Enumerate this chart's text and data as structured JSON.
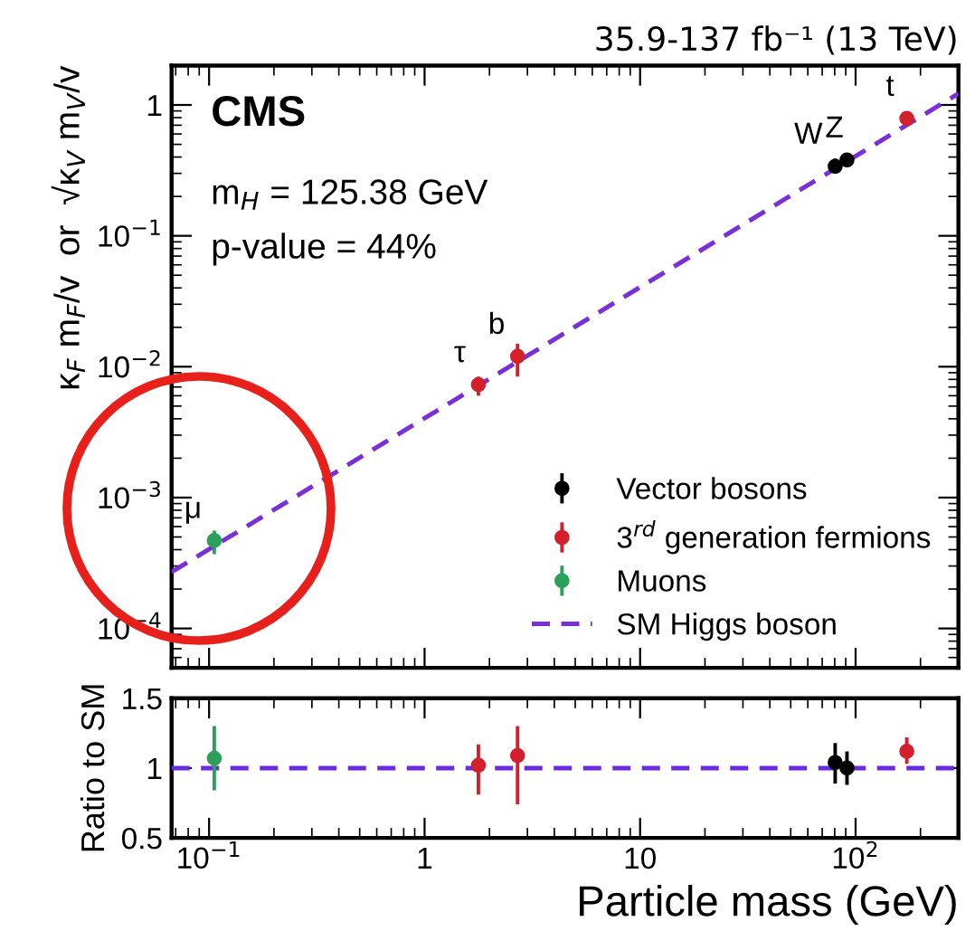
{
  "chart_data": [
    {
      "type": "scatter",
      "title": "35.9-137 fb⁻¹ (13 TeV)",
      "ylabel": "κ$_{F}$ m$_{F}$/v  or  √κ$_{V}$ m$_{V}$/v",
      "log": "xy",
      "xlim": [
        0.067,
        300
      ],
      "ylim": [
        5e-05,
        2
      ],
      "xticks": [
        {
          "value": 0.1,
          "label": null
        },
        {
          "value": 1,
          "label": null
        },
        {
          "value": 10,
          "label": null
        },
        {
          "value": 100,
          "label": null
        }
      ],
      "yticks": [
        {
          "value": 0.0001,
          "label": "10$^{−4}$"
        },
        {
          "value": 0.001,
          "label": "10$^{−3}$"
        },
        {
          "value": 0.01,
          "label": "10$^{−2}$"
        },
        {
          "value": 0.1,
          "label": "10$^{−1}$"
        },
        1
      ],
      "tick_labels": "y",
      "legend": "bottom right",
      "marker": "circle",
      "series": [
        {
          "name": "Vector bosons",
          "color": "#000000",
          "x": [
            80.4,
            91.2
          ],
          "values": [
            0.34,
            0.38
          ],
          "errors": [
            [
              0.3,
              0.39
            ],
            [
              0.34,
              0.42
            ]
          ]
        },
        {
          "name": "3$^{rd}$ generation fermions",
          "color": "#d4202c",
          "x": [
            1.777,
            2.7,
            172.8
          ],
          "values": [
            0.0073,
            0.012,
            0.79
          ],
          "errors": [
            [
              0.006,
              0.0084
            ],
            [
              0.0084,
              0.015
            ],
            [
              0.72,
              0.86
            ]
          ]
        },
        {
          "name": "Muons",
          "color": "#2ca05a",
          "x": [
            0.1057
          ],
          "values": [
            0.00047
          ],
          "errors": [
            [
              0.00037,
              0.00056
            ]
          ]
        },
        {
          "name": "SM Higgs boson",
          "type": "line",
          "line_style": "dashed",
          "marker": "none",
          "color": "#7b2fd6",
          "x": [
            0.067,
            300
          ],
          "values": [
            0.00027,
            1.22
          ]
        }
      ],
      "annotations": [
        {
          "text": "μ",
          "x": 0.1057,
          "y": 0.00047
        },
        {
          "text": "τ",
          "x": 1.777,
          "y": 0.0073
        },
        {
          "text": "b",
          "x": 2.7,
          "y": 0.012
        },
        {
          "text": "W",
          "x": 80.4,
          "y": 0.34
        },
        {
          "text": "Z",
          "x": 91.2,
          "y": 0.38
        },
        {
          "text": "t",
          "x": 172.8,
          "y": 0.79
        },
        "CMS",
        "m$_{H}$ = 125.38 GeV",
        "p-value = 44%"
      ]
    },
    {
      "type": "scatter",
      "xlabel": "Particle mass (GeV)",
      "ylabel": "Ratio to SM",
      "log": "x",
      "xlim": [
        0.067,
        300
      ],
      "ylim": [
        0.5,
        1.5
      ],
      "xticks": [
        {
          "value": 0.1,
          "label": "10$^{−1}$"
        },
        1,
        10,
        {
          "value": 100,
          "label": "10$^{2}$"
        }
      ],
      "yticks": [
        0.5,
        1,
        1.5
      ],
      "marker": "circle",
      "series": [
        {
          "color": "#000000",
          "x": [
            80.4,
            91.2
          ],
          "values": [
            1.04,
            1.0
          ],
          "errors": [
            [
              0.89,
              1.18
            ],
            [
              0.88,
              1.12
            ]
          ]
        },
        {
          "color": "#d4202c",
          "x": [
            1.777,
            2.7,
            172.8
          ],
          "values": [
            1.02,
            1.09,
            1.12
          ],
          "errors": [
            [
              0.81,
              1.17
            ],
            [
              0.74,
              1.3
            ],
            [
              1.03,
              1.22
            ]
          ]
        },
        {
          "color": "#2ca05a",
          "x": [
            0.1057
          ],
          "values": [
            1.07
          ],
          "errors": [
            [
              0.84,
              1.3
            ]
          ]
        }
      ],
      "ref_lines": [
        {
          "axis": "y",
          "value": 1,
          "color": "#6a2be0",
          "line_style": "dashed"
        }
      ]
    }
  ]
}
